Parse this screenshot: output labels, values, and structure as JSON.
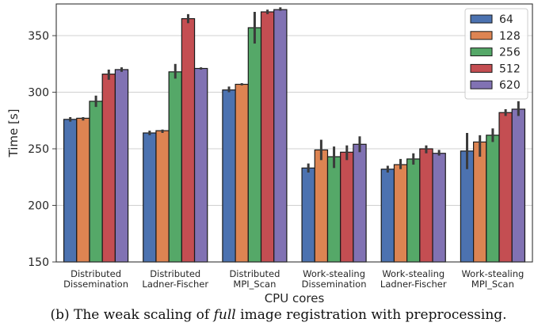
{
  "chart_data": {
    "type": "bar",
    "xlabel": "CPU cores",
    "ylabel": "Time [s]",
    "ylim": [
      150,
      378
    ],
    "yticks": [
      150,
      200,
      250,
      300,
      350
    ],
    "grid": "horizontal",
    "legend_position": "top-right",
    "categories": [
      [
        "Distributed",
        "Dissemination"
      ],
      [
        "Distributed",
        "Ladner-Fischer"
      ],
      [
        "Distributed",
        "MPI_Scan"
      ],
      [
        "Work-stealing",
        "Dissemination"
      ],
      [
        "Work-stealing",
        "Ladner-Fischer"
      ],
      [
        "Work-stealing",
        "MPI_Scan"
      ]
    ],
    "series": [
      {
        "name": "64",
        "color": "#4c72b0",
        "values": [
          276,
          264,
          302,
          233,
          232,
          248
        ],
        "err_low": [
          274,
          262,
          300,
          229,
          229,
          232
        ],
        "err_high": [
          278,
          266,
          305,
          237,
          235,
          264
        ]
      },
      {
        "name": "128",
        "color": "#dd8452",
        "values": [
          277,
          266,
          307,
          249,
          236,
          256
        ],
        "err_low": [
          275,
          264,
          306,
          240,
          232,
          243
        ],
        "err_high": [
          278,
          267,
          308,
          258,
          241,
          262
        ]
      },
      {
        "name": "256",
        "color": "#55a868",
        "values": [
          292,
          318,
          357,
          243,
          241,
          262
        ],
        "err_low": [
          287,
          312,
          343,
          233,
          236,
          256
        ],
        "err_high": [
          297,
          325,
          371,
          252,
          246,
          268
        ]
      },
      {
        "name": "512",
        "color": "#c44e52",
        "values": [
          316,
          365,
          371,
          247,
          250,
          282
        ],
        "err_low": [
          311,
          361,
          369,
          240,
          246,
          279
        ],
        "err_high": [
          320,
          369,
          373,
          253,
          253,
          285
        ]
      },
      {
        "name": "620",
        "color": "#8172b3",
        "values": [
          320,
          321,
          373,
          254,
          246,
          285
        ],
        "err_low": [
          318,
          320,
          372,
          247,
          244,
          279
        ],
        "err_high": [
          322,
          322,
          375,
          261,
          249,
          292
        ]
      }
    ]
  },
  "caption": {
    "prefix": "(b) The weak scaling of ",
    "emphasis": "full",
    "suffix": " image registration with preprocessing."
  }
}
